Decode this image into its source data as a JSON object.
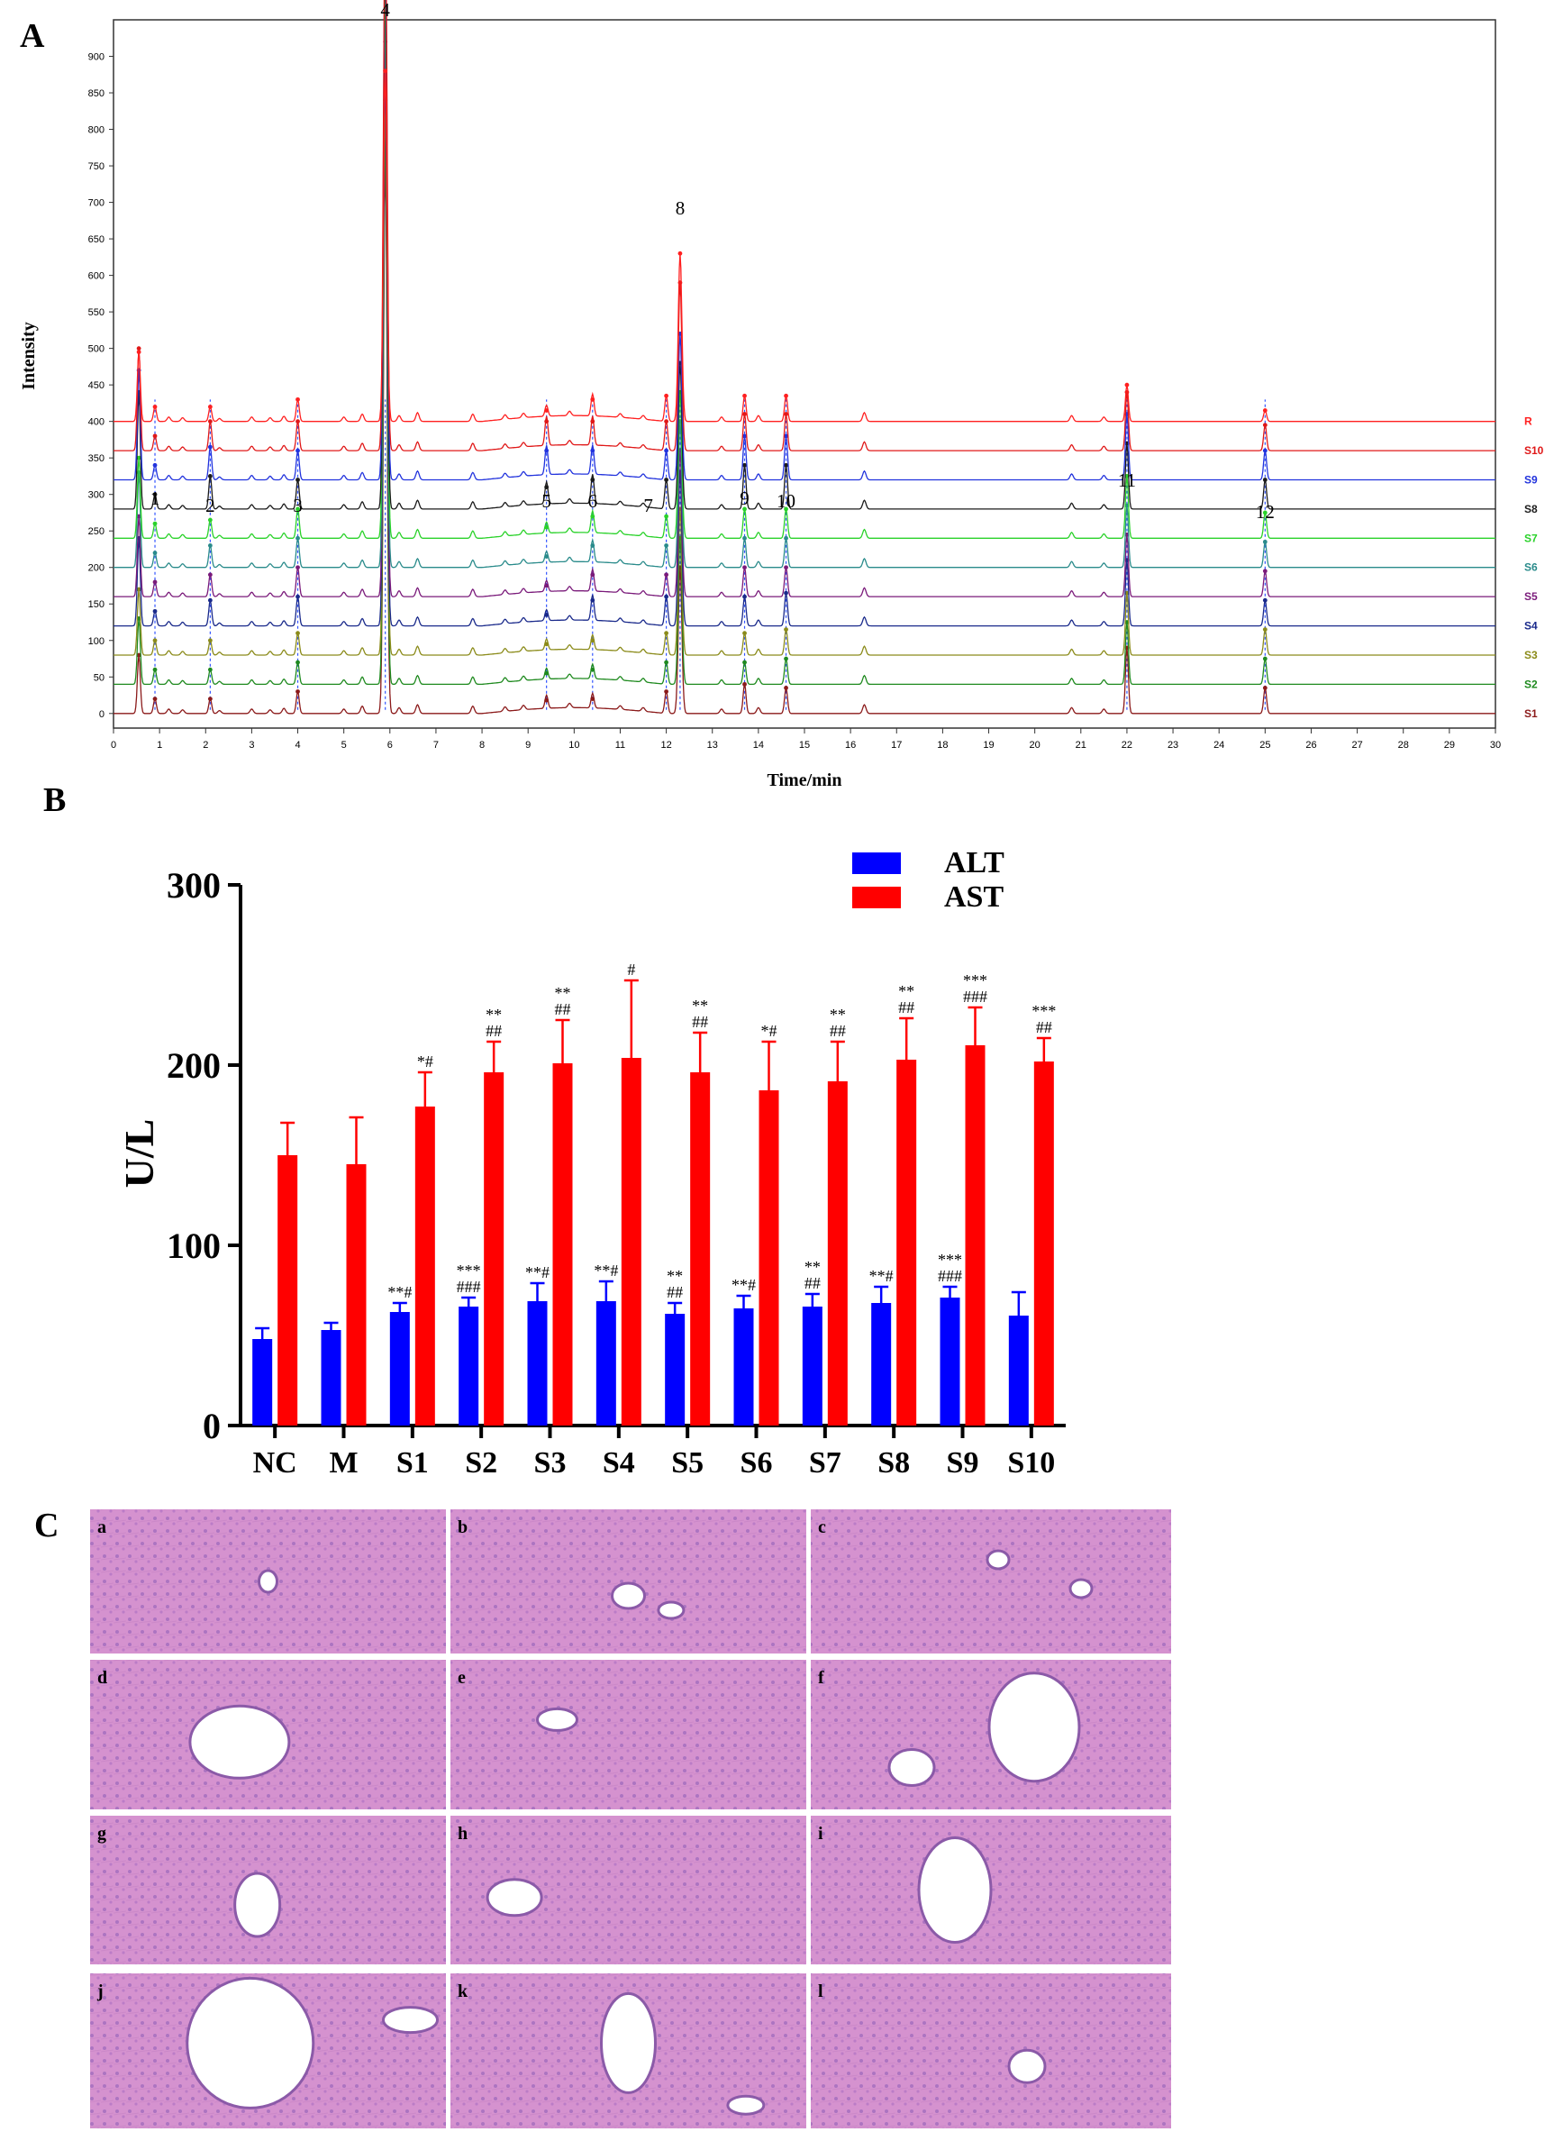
{
  "panels": {
    "a": "A",
    "b": "B",
    "c": "C"
  },
  "chart_data": [
    {
      "type": "line",
      "title": "",
      "xlabel": "Time/min",
      "ylabel": "Intensity",
      "xlim": [
        0,
        30
      ],
      "ylim": [
        0,
        950
      ],
      "x_ticks": [
        0,
        1,
        2,
        3,
        4,
        5,
        6,
        7,
        8,
        9,
        10,
        11,
        12,
        13,
        14,
        15,
        16,
        17,
        18,
        19,
        20,
        21,
        22,
        23,
        24,
        25,
        26,
        27,
        28,
        29,
        30
      ],
      "y_ticks": [
        0,
        50,
        100,
        150,
        200,
        250,
        300,
        350,
        400,
        450,
        500,
        550,
        600,
        650,
        700,
        750,
        800,
        850,
        900
      ],
      "peaks": [
        {
          "label": "1",
          "time": 0.9
        },
        {
          "label": "2",
          "time": 2.1
        },
        {
          "label": "3",
          "time": 4.0
        },
        {
          "label": "4",
          "time": 5.9
        },
        {
          "label": "5",
          "time": 9.4
        },
        {
          "label": "6",
          "time": 10.4
        },
        {
          "label": "7",
          "time": 12.0
        },
        {
          "label": "8",
          "time": 12.3
        },
        {
          "label": "9",
          "time": 13.7
        },
        {
          "label": "10",
          "time": 14.6
        },
        {
          "label": "11",
          "time": 22.0
        },
        {
          "label": "12",
          "time": 25.0
        }
      ],
      "series": [
        {
          "name": "S1",
          "offset": 0,
          "color": "#8b1a1a",
          "peak_heights": [
            80,
            20,
            20,
            30,
            760,
            18,
            20,
            30,
            200,
            40,
            35,
            90,
            35
          ]
        },
        {
          "name": "S2",
          "offset": 40,
          "color": "#1f8a1f",
          "peak_heights": [
            90,
            20,
            20,
            30,
            760,
            15,
            20,
            30,
            200,
            30,
            35,
            85,
            35
          ]
        },
        {
          "name": "S3",
          "offset": 80,
          "color": "#8b8b1a",
          "peak_heights": [
            90,
            20,
            20,
            30,
            760,
            15,
            20,
            30,
            200,
            30,
            35,
            85,
            35
          ]
        },
        {
          "name": "S4",
          "offset": 120,
          "color": "#1a2a8b",
          "peak_heights": [
            120,
            20,
            35,
            40,
            760,
            15,
            35,
            40,
            210,
            40,
            45,
            90,
            35
          ]
        },
        {
          "name": "S5",
          "offset": 160,
          "color": "#7a1a7a",
          "peak_heights": [
            110,
            20,
            30,
            40,
            760,
            15,
            30,
            30,
            200,
            40,
            40,
            85,
            35
          ]
        },
        {
          "name": "S6",
          "offset": 200,
          "color": "#2a8b8b",
          "peak_heights": [
            130,
            20,
            30,
            40,
            760,
            15,
            30,
            30,
            200,
            40,
            40,
            85,
            35
          ]
        },
        {
          "name": "S7",
          "offset": 240,
          "color": "#2ad22a",
          "peak_heights": [
            110,
            20,
            25,
            40,
            760,
            15,
            30,
            30,
            200,
            40,
            40,
            85,
            35
          ]
        },
        {
          "name": "S8",
          "offset": 280,
          "color": "#1b1b1b",
          "peak_heights": [
            160,
            20,
            45,
            40,
            760,
            30,
            40,
            40,
            200,
            60,
            60,
            90,
            40
          ]
        },
        {
          "name": "S9",
          "offset": 320,
          "color": "#2233dd",
          "peak_heights": [
            150,
            20,
            45,
            40,
            760,
            40,
            40,
            40,
            200,
            60,
            60,
            90,
            40
          ]
        },
        {
          "name": "S10",
          "offset": 360,
          "color": "#e01818",
          "peak_heights": [
            140,
            20,
            40,
            40,
            760,
            40,
            40,
            40,
            230,
            50,
            50,
            80,
            35
          ]
        },
        {
          "name": "R",
          "offset": 400,
          "color": "#ff2020",
          "peak_heights": [
            95,
            20,
            20,
            30,
            480,
            15,
            30,
            35,
            230,
            35,
            35,
            50,
            15
          ]
        }
      ]
    },
    {
      "type": "bar",
      "title": "",
      "xlabel": "",
      "ylabel": "U/L",
      "ylim": [
        0,
        300
      ],
      "y_ticks": [
        0,
        100,
        200,
        300
      ],
      "categories": [
        "NC",
        "M",
        "S1",
        "S2",
        "S3",
        "S4",
        "S5",
        "S6",
        "S7",
        "S8",
        "S9",
        "S10"
      ],
      "series": [
        {
          "name": "ALT",
          "color": "#0000ff",
          "values": [
            48,
            53,
            63,
            66,
            69,
            69,
            62,
            65,
            66,
            68,
            71,
            61
          ],
          "errors": [
            6,
            4,
            5,
            5,
            10,
            11,
            6,
            7,
            7,
            9,
            6,
            13
          ],
          "annotations": [
            "",
            "",
            "**#",
            "***\n###",
            "**#",
            "**#",
            "**\n##",
            "**#",
            "**\n##",
            "**#",
            "***\n###",
            ""
          ]
        },
        {
          "name": "AST",
          "color": "#ff0000",
          "values": [
            150,
            145,
            177,
            196,
            201,
            204,
            196,
            186,
            191,
            203,
            211,
            202
          ],
          "errors": [
            18,
            26,
            19,
            17,
            24,
            43,
            22,
            27,
            22,
            23,
            21,
            13
          ],
          "annotations": [
            "",
            "",
            "*#",
            "**\n##",
            "**\n##",
            "#",
            "**\n##",
            "*#",
            "**\n##",
            "**\n##",
            "***\n###",
            "***\n##"
          ]
        }
      ]
    }
  ],
  "histology": {
    "panel_labels": [
      "a",
      "b",
      "c",
      "d",
      "e",
      "f",
      "g",
      "h",
      "i",
      "j",
      "k",
      "l"
    ]
  }
}
